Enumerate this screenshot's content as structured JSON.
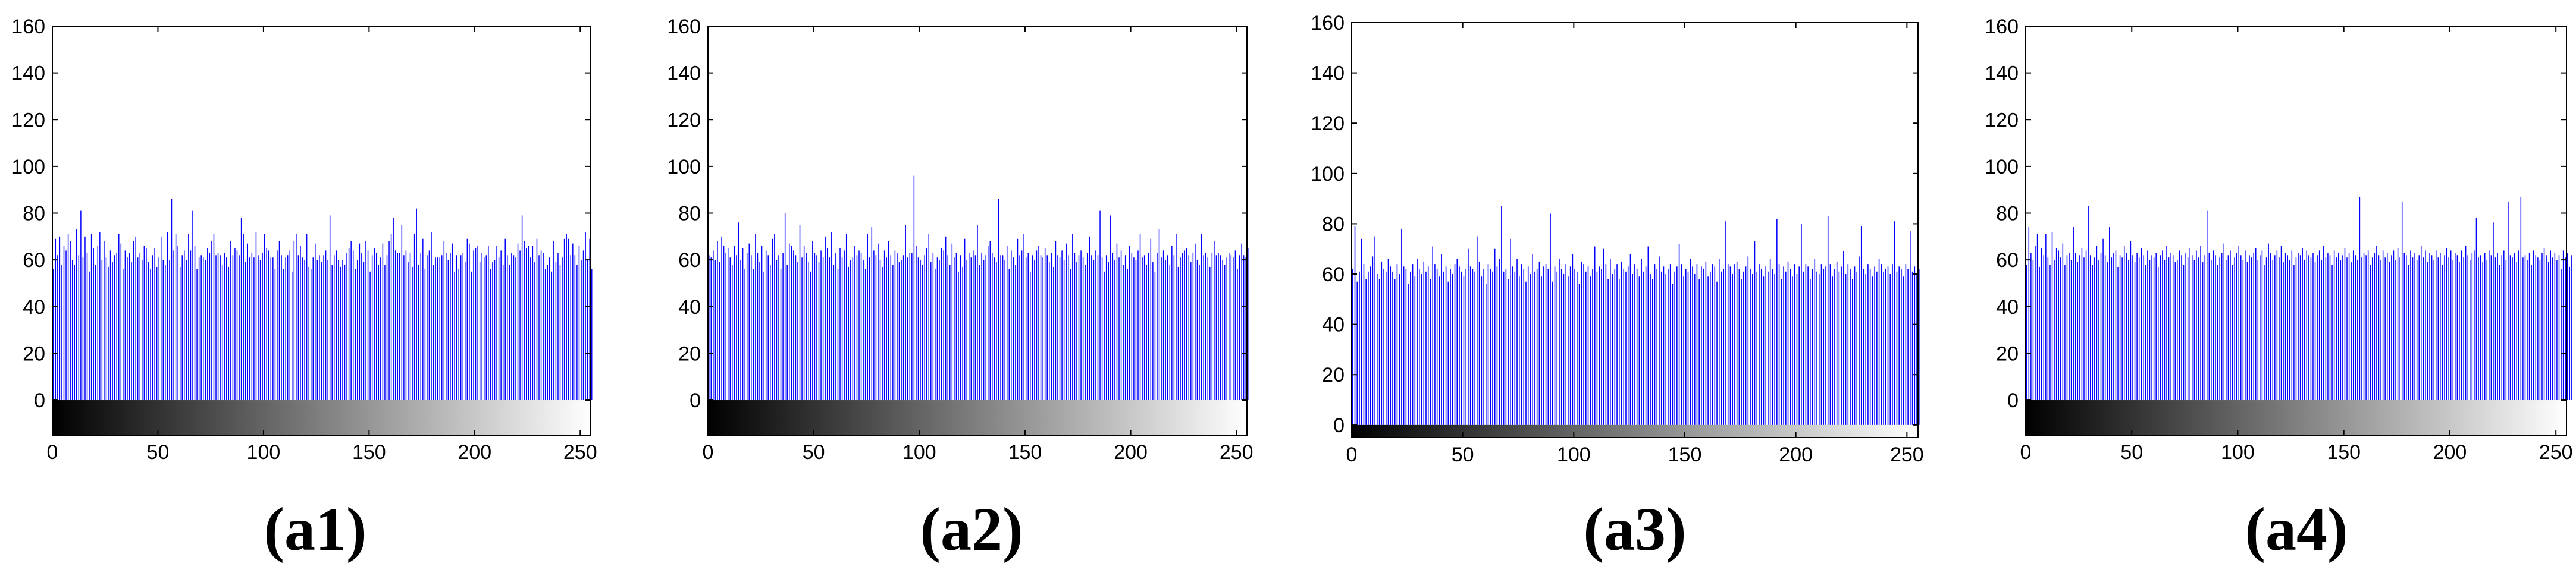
{
  "figure": {
    "panels": [
      {
        "caption": "(a1)"
      },
      {
        "caption": "(a2)"
      },
      {
        "caption": "(a3)"
      },
      {
        "caption": "(a4)"
      }
    ]
  },
  "chart_data": [
    {
      "type": "bar",
      "title": "",
      "xlabel": "",
      "ylabel": "",
      "xlim": [
        0,
        255
      ],
      "ylim": [
        -15,
        160
      ],
      "xticks": [
        0,
        50,
        100,
        150,
        200,
        250
      ],
      "yticks": [
        0,
        20,
        40,
        60,
        80,
        100,
        120,
        140,
        160
      ],
      "grid": false,
      "colorbar": "grayscale 0-255 below axis",
      "bar_color": "#0000ff",
      "x_start": 0,
      "values": [
        56,
        69,
        62,
        70,
        58,
        66,
        64,
        71,
        68,
        60,
        58,
        73,
        62,
        81,
        61,
        70,
        63,
        55,
        71,
        65,
        58,
        66,
        72,
        60,
        68,
        61,
        57,
        64,
        59,
        62,
        63,
        71,
        67,
        56,
        64,
        61,
        63,
        59,
        68,
        70,
        61,
        63,
        60,
        66,
        65,
        59,
        56,
        62,
        65,
        57,
        61,
        70,
        60,
        58,
        72,
        60,
        86,
        64,
        71,
        66,
        57,
        62,
        64,
        60,
        71,
        64,
        81,
        66,
        56,
        61,
        62,
        61,
        60,
        65,
        63,
        68,
        71,
        62,
        63,
        62,
        58,
        63,
        61,
        57,
        68,
        62,
        65,
        64,
        62,
        78,
        71,
        59,
        67,
        61,
        63,
        61,
        72,
        62,
        60,
        63,
        71,
        65,
        64,
        61,
        61,
        56,
        64,
        68,
        62,
        56,
        61,
        62,
        64,
        55,
        68,
        71,
        62,
        66,
        61,
        60,
        71,
        57,
        56,
        61,
        67,
        60,
        62,
        59,
        62,
        64,
        60,
        79,
        58,
        62,
        64,
        60,
        57,
        60,
        58,
        63,
        65,
        68,
        64,
        56,
        60,
        67,
        63,
        59,
        68,
        64,
        55,
        62,
        65,
        63,
        58,
        61,
        67,
        58,
        62,
        68,
        71,
        78,
        64,
        63,
        63,
        75,
        62,
        64,
        59,
        63,
        57,
        71,
        82,
        58,
        63,
        69,
        56,
        62,
        64,
        72,
        58,
        61,
        61,
        61,
        62,
        68,
        63,
        60,
        63,
        67,
        55,
        62,
        56,
        62,
        63,
        59,
        69,
        67,
        55,
        64,
        65,
        66,
        59,
        63,
        61,
        62,
        66,
        56,
        59,
        60,
        66,
        61,
        64,
        58,
        69,
        62,
        58,
        63,
        62,
        61,
        67,
        64,
        79,
        68,
        65,
        66,
        61,
        66,
        59,
        69,
        62,
        64,
        63,
        56,
        58,
        61,
        55,
        68,
        59,
        63,
        58,
        61,
        69,
        71,
        69,
        62,
        67,
        62,
        58,
        66,
        60,
        64,
        72,
        60,
        69,
        56
      ]
    },
    {
      "type": "bar",
      "title": "",
      "xlabel": "",
      "ylabel": "",
      "xlim": [
        0,
        255
      ],
      "ylim": [
        -15,
        160
      ],
      "xticks": [
        0,
        50,
        100,
        150,
        200,
        250
      ],
      "yticks": [
        0,
        20,
        40,
        60,
        80,
        100,
        120,
        140,
        160
      ],
      "grid": false,
      "colorbar": "grayscale 0-255 below axis",
      "bar_color": "#0000ff",
      "x_start": 0,
      "values": [
        62,
        61,
        64,
        60,
        68,
        59,
        70,
        66,
        63,
        65,
        61,
        58,
        66,
        62,
        76,
        60,
        65,
        56,
        63,
        67,
        62,
        56,
        71,
        63,
        59,
        66,
        55,
        64,
        62,
        58,
        69,
        71,
        60,
        62,
        56,
        63,
        80,
        58,
        67,
        66,
        64,
        62,
        59,
        75,
        61,
        66,
        63,
        59,
        55,
        68,
        63,
        62,
        59,
        64,
        61,
        70,
        65,
        61,
        72,
        58,
        63,
        56,
        65,
        61,
        64,
        71,
        57,
        60,
        61,
        66,
        62,
        64,
        63,
        60,
        56,
        71,
        61,
        74,
        64,
        62,
        67,
        60,
        57,
        64,
        61,
        68,
        62,
        58,
        64,
        63,
        59,
        60,
        62,
        75,
        61,
        63,
        63,
        96,
        66,
        61,
        60,
        58,
        62,
        65,
        71,
        59,
        63,
        56,
        61,
        60,
        65,
        64,
        70,
        62,
        58,
        67,
        61,
        63,
        55,
        62,
        57,
        69,
        60,
        63,
        61,
        64,
        62,
        75,
        58,
        63,
        60,
        62,
        66,
        68,
        63,
        61,
        59,
        86,
        62,
        62,
        60,
        66,
        56,
        64,
        61,
        58,
        69,
        62,
        64,
        71,
        61,
        63,
        55,
        62,
        60,
        64,
        66,
        62,
        61,
        65,
        62,
        59,
        63,
        57,
        68,
        62,
        61,
        64,
        60,
        67,
        62,
        56,
        71,
        63,
        59,
        62,
        64,
        61,
        58,
        63,
        70,
        62,
        60,
        64,
        62,
        81,
        61,
        55,
        62,
        59,
        79,
        63,
        60,
        67,
        61,
        64,
        58,
        62,
        56,
        66,
        63,
        61,
        60,
        64,
        71,
        61,
        62,
        58,
        63,
        69,
        59,
        55,
        63,
        73,
        61,
        64,
        60,
        62,
        58,
        66,
        62,
        71,
        57,
        61,
        63,
        64,
        65,
        62,
        59,
        63,
        67,
        60,
        58,
        71,
        62,
        63,
        61,
        57,
        63,
        68,
        62,
        63,
        62,
        60,
        58,
        61,
        63,
        62,
        61,
        64,
        56,
        62,
        67,
        62,
        61,
        65
      ]
    },
    {
      "type": "bar",
      "title": "",
      "xlabel": "",
      "ylabel": "",
      "xlim": [
        0,
        255
      ],
      "ylim": [
        -5,
        160
      ],
      "xticks": [
        0,
        50,
        100,
        150,
        200,
        250
      ],
      "yticks": [
        0,
        20,
        40,
        60,
        80,
        100,
        120,
        140,
        160
      ],
      "grid": false,
      "colorbar": "grayscale 0-255 below axis",
      "bar_color": "#0000ff",
      "x_start": 0,
      "values": [
        62,
        79,
        57,
        61,
        74,
        64,
        58,
        61,
        63,
        67,
        75,
        60,
        58,
        65,
        62,
        61,
        66,
        63,
        61,
        58,
        64,
        60,
        78,
        63,
        62,
        56,
        61,
        64,
        59,
        66,
        62,
        60,
        65,
        61,
        63,
        58,
        71,
        64,
        62,
        59,
        68,
        61,
        63,
        57,
        62,
        60,
        64,
        66,
        63,
        61,
        59,
        62,
        70,
        63,
        62,
        61,
        75,
        65,
        59,
        62,
        56,
        64,
        62,
        61,
        70,
        63,
        66,
        87,
        61,
        62,
        58,
        74,
        63,
        61,
        66,
        59,
        64,
        62,
        57,
        63,
        60,
        68,
        61,
        62,
        65,
        59,
        63,
        64,
        62,
        84,
        57,
        63,
        61,
        66,
        62,
        60,
        64,
        59,
        63,
        68,
        62,
        61,
        56,
        65,
        64,
        61,
        63,
        59,
        62,
        71,
        61,
        63,
        62,
        70,
        64,
        58,
        66,
        60,
        62,
        64,
        58,
        65,
        62,
        61,
        63,
        68,
        60,
        64,
        62,
        59,
        66,
        61,
        63,
        71,
        60,
        58,
        64,
        62,
        67,
        61,
        63,
        60,
        62,
        64,
        56,
        61,
        63,
        72,
        64,
        59,
        62,
        61,
        66,
        63,
        60,
        64,
        58,
        63,
        62,
        65,
        59,
        61,
        64,
        63,
        57,
        66,
        61,
        62,
        81,
        64,
        63,
        60,
        64,
        65,
        62,
        58,
        61,
        63,
        67,
        62,
        60,
        73,
        61,
        64,
        62,
        59,
        63,
        61,
        66,
        62,
        60,
        82,
        64,
        58,
        63,
        61,
        65,
        62,
        59,
        64,
        60,
        63,
        80,
        61,
        64,
        63,
        58,
        62,
        66,
        61,
        60,
        64,
        62,
        63,
        83,
        64,
        59,
        62,
        65,
        61,
        63,
        69,
        60,
        64,
        62,
        58,
        63,
        61,
        67,
        79,
        62,
        60,
        64,
        62,
        59,
        63,
        61,
        66,
        64,
        61,
        62,
        63,
        60,
        64,
        81,
        61,
        63,
        62,
        59,
        64,
        62,
        77,
        61,
        63,
        60,
        62
      ]
    },
    {
      "type": "bar",
      "title": "",
      "xlabel": "",
      "ylabel": "",
      "xlim": [
        0,
        255
      ],
      "ylim": [
        -15,
        160
      ],
      "xticks": [
        0,
        50,
        100,
        150,
        200,
        250
      ],
      "yticks": [
        0,
        20,
        40,
        60,
        80,
        100,
        120,
        140,
        160
      ],
      "grid": false,
      "colorbar": "grayscale 0-255 below axis",
      "bar_color": "#0000ff",
      "x_start": 0,
      "values": [
        58,
        74,
        63,
        60,
        66,
        71,
        57,
        65,
        62,
        71,
        61,
        58,
        72,
        60,
        65,
        64,
        61,
        67,
        58,
        62,
        63,
        60,
        74,
        63,
        59,
        62,
        65,
        61,
        64,
        83,
        62,
        58,
        61,
        66,
        60,
        63,
        69,
        62,
        59,
        74,
        61,
        63,
        64,
        57,
        62,
        61,
        66,
        63,
        60,
        68,
        62,
        59,
        63,
        61,
        65,
        62,
        58,
        64,
        60,
        62,
        61,
        63,
        57,
        62,
        64,
        60,
        66,
        61,
        63,
        62,
        59,
        60,
        64,
        62,
        58,
        63,
        61,
        65,
        62,
        60,
        64,
        61,
        66,
        59,
        62,
        81,
        63,
        60,
        64,
        62,
        58,
        61,
        63,
        67,
        60,
        62,
        64,
        58,
        61,
        63,
        66,
        62,
        60,
        64,
        59,
        62,
        61,
        63,
        65,
        60,
        62,
        64,
        58,
        61,
        67,
        63,
        60,
        62,
        64,
        61,
        66,
        59,
        63,
        62,
        60,
        64,
        58,
        61,
        63,
        62,
        65,
        60,
        64,
        62,
        61,
        63,
        59,
        62,
        64,
        60,
        66,
        61,
        63,
        62,
        58,
        64,
        61,
        63,
        60,
        62,
        65,
        61,
        63,
        59,
        64,
        62,
        60,
        87,
        61,
        63,
        62,
        64,
        58,
        61,
        63,
        66,
        62,
        60,
        64,
        61,
        63,
        59,
        62,
        64,
        60,
        65,
        61,
        85,
        63,
        62,
        58,
        64,
        61,
        63,
        60,
        62,
        66,
        61,
        64,
        59,
        63,
        62,
        60,
        64,
        61,
        63,
        58,
        62,
        65,
        61,
        64,
        60,
        63,
        62,
        59,
        64,
        61,
        66,
        62,
        60,
        63,
        64,
        78,
        61,
        62,
        59,
        63,
        60,
        64,
        62,
        76,
        61,
        63,
        58,
        62,
        64,
        60,
        85,
        62,
        61,
        63,
        59,
        64,
        87,
        61,
        62,
        60,
        63,
        58,
        64,
        62,
        61,
        60,
        63,
        65,
        62,
        59,
        64,
        61,
        63,
        60,
        62,
        56,
        64,
        61,
        63,
        57,
        62
      ]
    }
  ]
}
